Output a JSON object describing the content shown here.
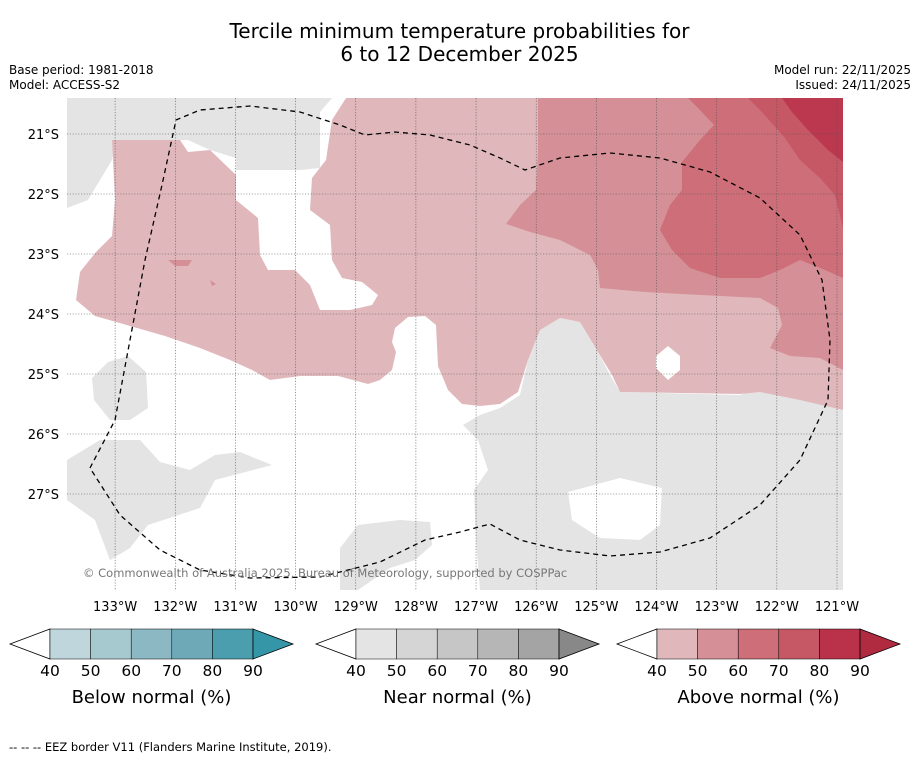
{
  "chart_data": {
    "type": "heatmap",
    "title_line1": "Tercile minimum temperature probabilities for",
    "title_line2": "6 to 12 December 2025",
    "base_period": "Base period: 1981-2018",
    "model": "Model: ACCESS-S2",
    "model_run": "Model run: 22/11/2025",
    "issued": "Issued: 24/11/2025",
    "x_ticks": [
      {
        "value": -133,
        "label": "133°W"
      },
      {
        "value": -132,
        "label": "132°W"
      },
      {
        "value": -131,
        "label": "131°W"
      },
      {
        "value": -130,
        "label": "130°W"
      },
      {
        "value": -129,
        "label": "129°W"
      },
      {
        "value": -128,
        "label": "128°W"
      },
      {
        "value": -127,
        "label": "127°W"
      },
      {
        "value": -126,
        "label": "126°W"
      },
      {
        "value": -125,
        "label": "125°W"
      },
      {
        "value": -124,
        "label": "124°W"
      },
      {
        "value": -123,
        "label": "123°W"
      },
      {
        "value": -122,
        "label": "122°W"
      },
      {
        "value": -121,
        "label": "121°W"
      }
    ],
    "y_ticks": [
      {
        "value": -21,
        "label": "21°S"
      },
      {
        "value": -22,
        "label": "22°S"
      },
      {
        "value": -23,
        "label": "23°S"
      },
      {
        "value": -24,
        "label": "24°S"
      },
      {
        "value": -25,
        "label": "25°S"
      },
      {
        "value": -26,
        "label": "26°S"
      },
      {
        "value": -27,
        "label": "27°S"
      }
    ],
    "xlim": [
      -133.8,
      -120.9
    ],
    "ylim": [
      -28.6,
      -20.4
    ],
    "grid": true,
    "copyright": "© Commonwealth of Australia 2025, Bureau of Meteorology, supported by COSPPac",
    "colorbars": [
      {
        "name": "below",
        "title": "Below normal (%)",
        "ticks": [
          "40",
          "50",
          "60",
          "70",
          "80",
          "90"
        ],
        "colors": [
          "#bed6dc",
          "#a6c8cf",
          "#8bb8c3",
          "#6ea9b7",
          "#4a9eae"
        ],
        "over": "#3596a8"
      },
      {
        "name": "near",
        "title": "Near normal (%)",
        "ticks": [
          "40",
          "50",
          "60",
          "70",
          "80",
          "90"
        ],
        "colors": [
          "#e4e4e4",
          "#d5d5d5",
          "#c6c6c6",
          "#b6b6b6",
          "#a4a4a4"
        ],
        "over": "#888888"
      },
      {
        "name": "above",
        "title": "Above normal (%)",
        "ticks": [
          "40",
          "50",
          "60",
          "70",
          "80",
          "90"
        ],
        "colors": [
          "#e0b8bc",
          "#d59097",
          "#cd6e78",
          "#c65764",
          "#b9324a"
        ],
        "over": "#b02a40"
      }
    ],
    "footnote": "--  --  -- EEZ border V11 (Flanders Marine Institute, 2019)."
  }
}
